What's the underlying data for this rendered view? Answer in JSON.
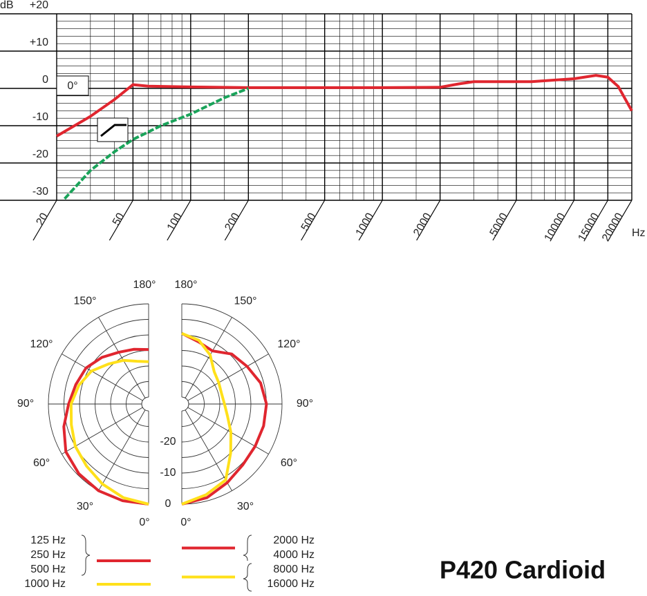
{
  "chart_data": [
    {
      "type": "line",
      "xlabel": "Hz",
      "ylabel": "dB",
      "xscale": "log",
      "annotation": "0°",
      "xlim": [
        20,
        20000
      ],
      "ylim": [
        -30,
        20
      ],
      "xticks": [
        20,
        50,
        100,
        200,
        500,
        1000,
        2000,
        5000,
        10000,
        15000,
        20000
      ],
      "yticks": [
        -30,
        -20,
        -10,
        0,
        {
          "value": 10,
          "label": "+10"
        },
        {
          "value": 20,
          "label": "+20"
        }
      ],
      "xminor": [
        30,
        40,
        60,
        70,
        80,
        90,
        150,
        300,
        400,
        600,
        700,
        800,
        900,
        1500,
        3000,
        4000,
        6000,
        7000,
        8000,
        9000
      ],
      "yminor": [
        -28,
        -26,
        -24,
        -22,
        -18,
        -16,
        -14,
        -12,
        -8,
        -6,
        -4,
        -2,
        2,
        4,
        6,
        8,
        12,
        14,
        16,
        18
      ],
      "series": [
        {
          "color": "#e0262f",
          "x": [
            20,
            30,
            40,
            50,
            60,
            100,
            200,
            500,
            1000,
            2000,
            2500,
            3000,
            6000,
            10000,
            13000,
            15000,
            17000,
            20000
          ],
          "values": [
            -12.8,
            -7.5,
            -3,
            1,
            0.6,
            0.4,
            0.2,
            0.2,
            0.2,
            0.3,
            1.2,
            1.8,
            1.8,
            2.6,
            3.5,
            3,
            0.5,
            -6
          ]
        },
        {
          "color": "#1aa35a",
          "x": [
            22,
            30,
            40,
            50,
            70,
            100,
            150,
            200
          ],
          "values": [
            -29.6,
            -22,
            -17,
            -13.7,
            -10,
            -6.9,
            -2.5,
            0
          ]
        }
      ]
    },
    {
      "type": "polar",
      "title": "P420 Cardioid",
      "rlim": [
        -30,
        0
      ],
      "rticks": [
        0,
        -10,
        -20
      ],
      "rgrid": [
        0,
        -5,
        -10,
        -15,
        -20,
        -25
      ],
      "theta": [
        0,
        15,
        30,
        45,
        60,
        75,
        90,
        105,
        120,
        135,
        150,
        165,
        180
      ],
      "thetaticks": [
        {
          "value": 0,
          "label": "0°"
        },
        {
          "value": 30,
          "label": "30°"
        },
        {
          "value": 60,
          "label": "60°"
        },
        {
          "value": 90,
          "label": "90°"
        },
        {
          "value": 120,
          "label": "120°"
        },
        {
          "value": 150,
          "label": "150°"
        },
        {
          "value": 180,
          "label": "180°"
        }
      ],
      "series": [
        {
          "side": "left",
          "color": "#e0262f",
          "labels": [
            "125 Hz",
            "250 Hz",
            "500 Hz"
          ],
          "values": [
            0,
            0,
            0,
            -0.5,
            -1.5,
            -4,
            -6.5,
            -8,
            -9,
            -11,
            -13,
            -14,
            -14.7
          ]
        },
        {
          "side": "left",
          "color": "#ffe01a",
          "labels": [
            "1000 Hz"
          ],
          "values": [
            0,
            -1,
            -2.5,
            -4,
            -5,
            -6.5,
            -7.3,
            -9,
            -11,
            -14,
            -16,
            -18,
            -18.6
          ]
        },
        {
          "side": "right",
          "color": "#e0262f",
          "labels": [
            "2000 Hz",
            "4000 Hz"
          ],
          "values": [
            0,
            -1,
            -3,
            -4.5,
            -5,
            -5,
            -5,
            -6,
            -8,
            -9.5,
            -12.5,
            -11.5,
            -9.5
          ]
        },
        {
          "side": "right",
          "color": "#ffe01a",
          "labels": [
            "8000 Hz",
            "16000 Hz"
          ],
          "values": [
            0,
            -2,
            -4,
            -10,
            -14,
            -17,
            -18.5,
            -19,
            -18.5,
            -17.5,
            -14,
            -11,
            -9.5
          ]
        }
      ]
    }
  ]
}
